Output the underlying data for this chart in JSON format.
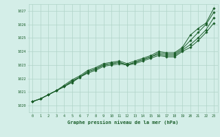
{
  "xlabel": "Graphe pression niveau de la mer (hPa)",
  "xlim": [
    -0.5,
    23.5
  ],
  "ylim": [
    1019.5,
    1027.5
  ],
  "yticks": [
    1020,
    1021,
    1022,
    1023,
    1024,
    1025,
    1026,
    1027
  ],
  "xticks": [
    0,
    1,
    2,
    3,
    4,
    5,
    6,
    7,
    8,
    9,
    10,
    11,
    12,
    13,
    14,
    15,
    16,
    17,
    18,
    19,
    20,
    21,
    22,
    23
  ],
  "bg_color": "#d4eee8",
  "grid_color": "#b0d4c8",
  "line_color": "#1a5e2a",
  "lines": [
    [
      1020.3,
      1020.5,
      1020.8,
      1021.1,
      1021.4,
      1021.7,
      1022.1,
      1022.4,
      1022.6,
      1022.9,
      1023.0,
      1023.1,
      1023.0,
      1023.1,
      1023.3,
      1023.5,
      1023.7,
      1023.6,
      1023.6,
      1024.0,
      1024.3,
      1024.8,
      1025.4,
      1026.1
    ],
    [
      1020.3,
      1020.5,
      1020.8,
      1021.1,
      1021.4,
      1021.8,
      1022.1,
      1022.5,
      1022.7,
      1023.0,
      1023.1,
      1023.2,
      1023.0,
      1023.2,
      1023.4,
      1023.6,
      1023.8,
      1023.7,
      1023.7,
      1024.1,
      1024.5,
      1025.0,
      1025.6,
      1026.5
    ],
    [
      1020.3,
      1020.5,
      1020.8,
      1021.1,
      1021.4,
      1021.8,
      1022.1,
      1022.5,
      1022.7,
      1023.0,
      1023.1,
      1023.2,
      1023.0,
      1023.2,
      1023.4,
      1023.6,
      1023.9,
      1023.8,
      1023.8,
      1024.2,
      1024.8,
      1025.4,
      1026.0,
      1026.9
    ],
    [
      1020.3,
      1020.5,
      1020.8,
      1021.1,
      1021.5,
      1021.9,
      1022.2,
      1022.6,
      1022.8,
      1023.1,
      1023.2,
      1023.3,
      1023.1,
      1023.3,
      1023.5,
      1023.7,
      1024.0,
      1023.9,
      1023.9,
      1024.3,
      1025.2,
      1025.7,
      1026.1,
      1027.2
    ]
  ]
}
